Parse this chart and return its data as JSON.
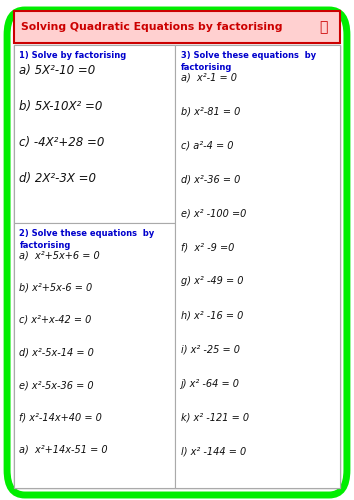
{
  "title": "Solving Quadratic Equations by factorising",
  "title_color": "#cc0000",
  "title_bg": "#ffd0d0",
  "title_border": "#cc0000",
  "outer_border_color": "#00ee00",
  "bg_color": "#ffffff",
  "section1_heading": "1) Solve by factorising",
  "section1_items": [
    "a) 5X²-10 =0",
    "b) 5X-10X² =0",
    "c) -4X²+28 =0",
    "d) 2X²-3X =0"
  ],
  "section2_heading": "2) Solve these equations  by\nfactorising",
  "section2_items": [
    "a)  x²+5x+6 = 0",
    "b) x²+5x-6 = 0",
    "c) x²+x-42 = 0",
    "d) x²-5x-14 = 0",
    "e) x²-5x-36 = 0",
    "f) x²-14x+40 = 0",
    "a)  x²+14x-51 = 0"
  ],
  "section3_heading": "3) Solve these equations  by\nfactorising",
  "section3_items": [
    "a)  x²-1 = 0",
    "b) x²-81 = 0",
    "c) a²-4 = 0",
    "d) x²-36 = 0",
    "e) x² -100 =0",
    "f)  x² -9 =0",
    "g) x² -49 = 0",
    "h) x² -16 = 0",
    "i) x² -25 = 0",
    "j) x² -64 = 0",
    "k) x² -121 = 0",
    "l) x² -144 = 0"
  ],
  "heading_color": "#0000cc",
  "body_color": "#111111"
}
